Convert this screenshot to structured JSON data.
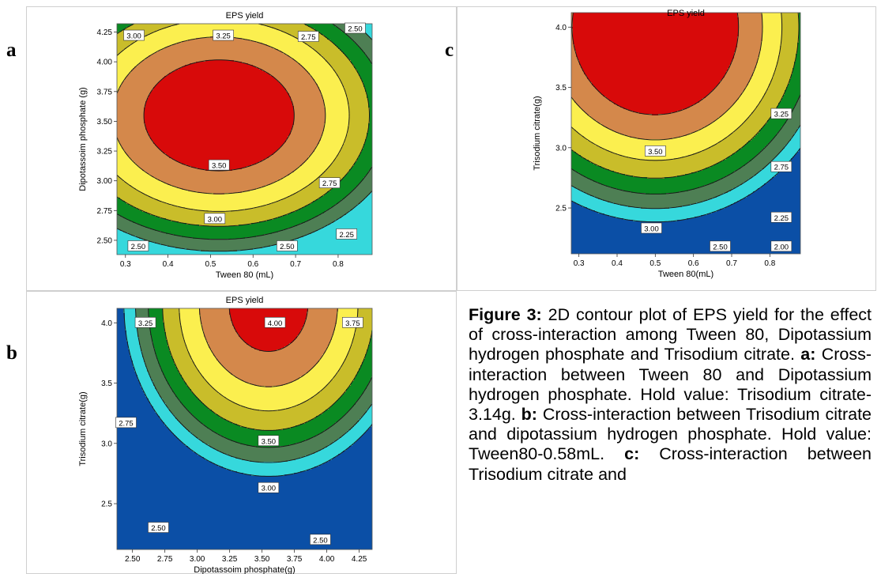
{
  "chart_data": [
    {
      "id": "a",
      "panel_label": "a",
      "type": "contour",
      "title": "EPS yield",
      "xlabel": "Tween 80 (mL)",
      "ylabel": "Dipotassoim phosphate (g)",
      "xlim": [
        0.28,
        0.88
      ],
      "ylim": [
        2.38,
        4.32
      ],
      "xticks": [
        "0.3",
        "0.4",
        "0.5",
        "0.6",
        "0.7",
        "0.8"
      ],
      "xtick_values": [
        0.3,
        0.4,
        0.5,
        0.6,
        0.7,
        0.8
      ],
      "yticks": [
        "2.50",
        "2.75",
        "3.00",
        "3.25",
        "3.50",
        "3.75",
        "4.00",
        "4.25"
      ],
      "ytick_values": [
        2.5,
        2.75,
        3.0,
        3.25,
        3.5,
        3.75,
        4.0,
        4.25
      ],
      "contour_levels": [
        2.25,
        2.5,
        2.75,
        3.0,
        3.25,
        3.5
      ],
      "model": {
        "xc": 0.52,
        "yc": 3.55,
        "peak": 3.75,
        "a": 8.0,
        "b": 1.15,
        "c": 0.0
      },
      "level_labels": [
        {
          "text": "3.00",
          "x": 0.32,
          "y": 4.22
        },
        {
          "text": "3.25",
          "x": 0.53,
          "y": 4.22
        },
        {
          "text": "2.75",
          "x": 0.73,
          "y": 4.21
        },
        {
          "text": "2.50",
          "x": 0.84,
          "y": 4.28
        },
        {
          "text": "3.50",
          "x": 0.52,
          "y": 3.13
        },
        {
          "text": "2.75",
          "x": 0.78,
          "y": 2.98
        },
        {
          "text": "3.00",
          "x": 0.51,
          "y": 2.68
        },
        {
          "text": "2.50",
          "x": 0.33,
          "y": 2.45
        },
        {
          "text": "2.50",
          "x": 0.68,
          "y": 2.45
        },
        {
          "text": "2.25",
          "x": 0.82,
          "y": 2.55
        }
      ]
    },
    {
      "id": "c",
      "panel_label": "c",
      "type": "contour",
      "title": "EPS yield",
      "xlabel": "Tween 80(mL)",
      "ylabel": "Trisodium citrate(g)",
      "xlim": [
        0.28,
        0.88
      ],
      "ylim": [
        2.12,
        4.12
      ],
      "xticks": [
        "0.3",
        "0.4",
        "0.5",
        "0.6",
        "0.7",
        "0.8"
      ],
      "xtick_values": [
        0.3,
        0.4,
        0.5,
        0.6,
        0.7,
        0.8
      ],
      "yticks": [
        "2.5",
        "3.0",
        "3.5",
        "4.0"
      ],
      "ytick_values": [
        2.5,
        3.0,
        3.5,
        4.0
      ],
      "contour_levels": [
        2.0,
        2.25,
        2.5,
        2.75,
        3.0,
        3.25,
        3.5
      ],
      "model": {
        "xc": 0.5,
        "yc": 4.0,
        "peak": 3.88,
        "a": 8.0,
        "b": 0.72,
        "c": 0.0
      },
      "level_labels": [
        {
          "text": "3.50",
          "x": 0.5,
          "y": 2.97
        },
        {
          "text": "3.25",
          "x": 0.83,
          "y": 3.28
        },
        {
          "text": "2.75",
          "x": 0.83,
          "y": 2.84
        },
        {
          "text": "3.00",
          "x": 0.49,
          "y": 2.33
        },
        {
          "text": "2.25",
          "x": 0.83,
          "y": 2.42
        },
        {
          "text": "2.50",
          "x": 0.67,
          "y": 2.18
        },
        {
          "text": "2.00",
          "x": 0.83,
          "y": 2.18
        }
      ]
    },
    {
      "id": "b",
      "panel_label": "b",
      "type": "contour",
      "title": "EPS yield",
      "xlabel": "Dipotassoim phosphate(g)",
      "ylabel": "Trisodium citrate(g)",
      "xlim": [
        2.38,
        4.35
      ],
      "ylim": [
        2.12,
        4.12
      ],
      "xticks": [
        "2.50",
        "2.75",
        "3.00",
        "3.25",
        "3.50",
        "3.75",
        "4.00",
        "4.25"
      ],
      "xtick_values": [
        2.5,
        2.75,
        3.0,
        3.25,
        3.5,
        3.75,
        4.0,
        4.25
      ],
      "yticks": [
        "2.5",
        "3.0",
        "3.5",
        "4.0"
      ],
      "ytick_values": [
        2.5,
        3.0,
        3.5,
        4.0
      ],
      "contour_levels": [
        2.5,
        2.75,
        3.0,
        3.25,
        3.5,
        3.75,
        4.0
      ],
      "model": {
        "xc": 3.55,
        "yc": 4.15,
        "peak": 4.12,
        "a": 1.3,
        "b": 0.8,
        "c": 0.0
      },
      "level_labels": [
        {
          "text": "4.00",
          "x": 3.6,
          "y": 4.0
        },
        {
          "text": "3.25",
          "x": 2.6,
          "y": 4.0
        },
        {
          "text": "3.75",
          "x": 4.2,
          "y": 4.0
        },
        {
          "text": "2.75",
          "x": 2.45,
          "y": 3.17
        },
        {
          "text": "3.50",
          "x": 3.55,
          "y": 3.02
        },
        {
          "text": "3.00",
          "x": 3.55,
          "y": 2.63
        },
        {
          "text": "2.50",
          "x": 2.7,
          "y": 2.3
        },
        {
          "text": "2.50",
          "x": 3.95,
          "y": 2.2
        }
      ]
    }
  ],
  "fill_colors": [
    "#0b4fa6",
    "#36d8dc",
    "#4e7f54",
    "#0a8a22",
    "#c9bd2a",
    "#fbef4f",
    "#d4884b",
    "#d80a0a"
  ],
  "caption": {
    "figure_label": "Figure 3:",
    "intro": " 2D contour plot of EPS yield for the effect of cross-interaction among Tween 80, Dipotassium hydrogen phosphate and Trisodium citrate. ",
    "a_label": "a:",
    "a_text": " Cross-interaction between Tween 80 and Dipotassium hydrogen phosphate. Hold value: Trisodium citrate-3.14g. ",
    "b_label": "b:",
    "b_text": " Cross-interaction between Trisodium citrate and dipotassium hydrogen phosphate. Hold value: Tween80-0.58mL. ",
    "c_label": "c:",
    "c_text": " Cross-interaction between Trisodium citrate and"
  }
}
